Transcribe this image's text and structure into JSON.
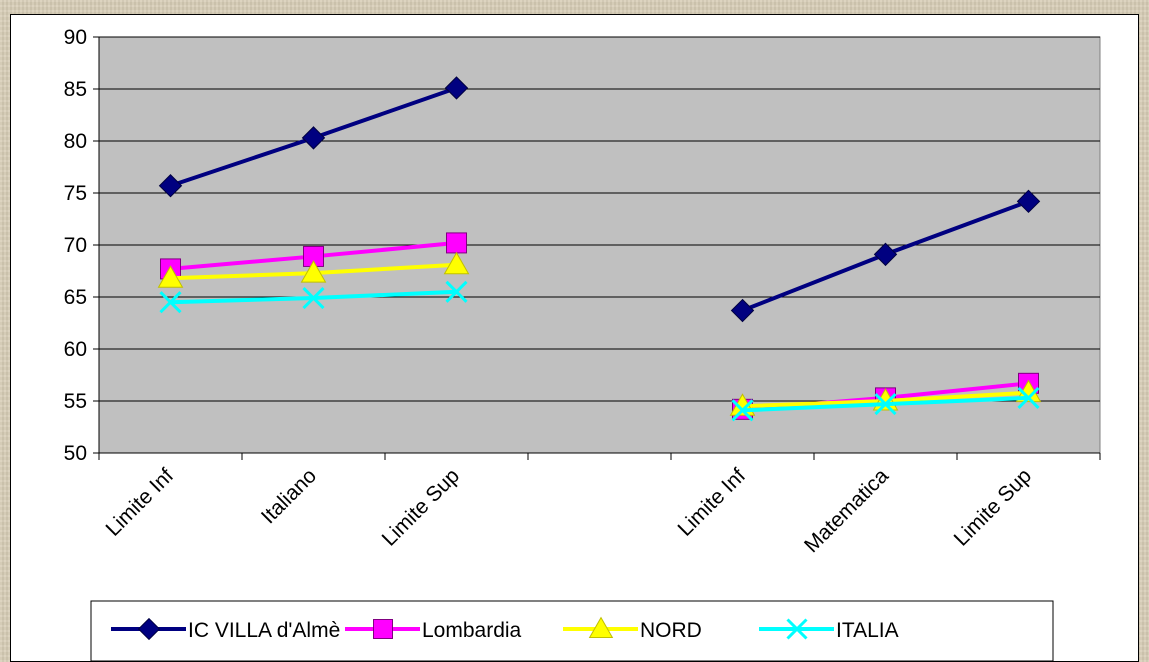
{
  "chart_data": {
    "type": "line",
    "title": "",
    "xlabel": "",
    "ylabel": "",
    "categories": [
      "Limite Inf",
      "Italiano",
      "Limite Sup",
      "",
      "Limite Inf",
      "Matematica",
      "Limite Sup"
    ],
    "ylim": [
      50,
      90
    ],
    "yticks": [
      50,
      55,
      60,
      65,
      70,
      75,
      80,
      85,
      90
    ],
    "grid": "horizontal",
    "legend_position": "bottom",
    "plot_background": "#c0c0c0",
    "series": [
      {
        "name": "IC VILLA d'Almè",
        "color": "#000080",
        "marker": "diamond",
        "values": [
          75.7,
          80.3,
          85.1,
          null,
          63.7,
          69.1,
          74.2
        ]
      },
      {
        "name": "Lombardia",
        "color": "#ff00ff",
        "marker": "square",
        "values": [
          67.7,
          68.9,
          70.2,
          null,
          54.2,
          55.3,
          56.7
        ]
      },
      {
        "name": "NORD",
        "color": "#ffff00",
        "marker": "triangle",
        "values": [
          66.8,
          67.3,
          68.1,
          null,
          54.5,
          55.0,
          55.8
        ]
      },
      {
        "name": "ITALIA",
        "color": "#00ffff",
        "marker": "x",
        "values": [
          64.5,
          64.9,
          65.5,
          null,
          54.1,
          54.7,
          55.3
        ]
      }
    ]
  }
}
